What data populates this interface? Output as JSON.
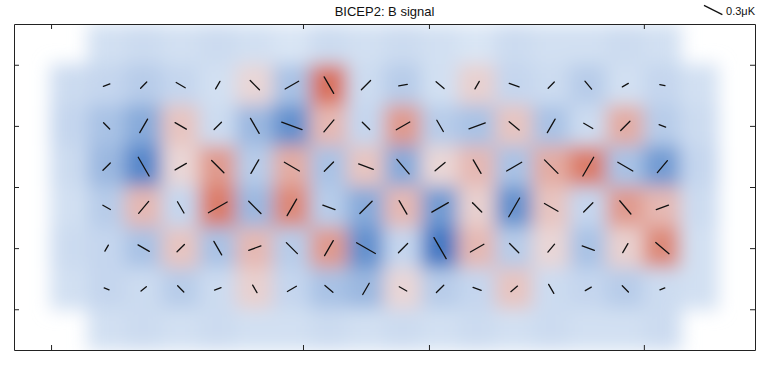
{
  "chart_data": {
    "type": "heatmap",
    "title": "BICEP2: B signal",
    "xlim": [
      0,
      20
    ],
    "ylim": [
      0,
      8
    ],
    "xticks": [
      1,
      7.8,
      11.2,
      17
    ],
    "yticks": [
      1,
      2.5,
      4,
      5.5,
      7
    ],
    "tick_labels": false,
    "zlim": [
      -0.3,
      0.3
    ],
    "scale_bar": {
      "value": 0.3,
      "label": "0.3μK"
    },
    "cells": [
      [
        null,
        null,
        -0.04,
        -0.05,
        -0.04,
        -0.05,
        -0.04,
        -0.03,
        -0.05,
        -0.04,
        -0.05,
        -0.04,
        -0.03,
        -0.05,
        -0.04,
        -0.04,
        -0.05,
        -0.04,
        null,
        null
      ],
      [
        null,
        -0.05,
        -0.06,
        -0.08,
        -0.06,
        -0.04,
        0.05,
        -0.1,
        0.22,
        -0.05,
        -0.08,
        -0.04,
        0.06,
        -0.06,
        -0.05,
        -0.08,
        -0.04,
        -0.06,
        -0.04,
        null
      ],
      [
        null,
        -0.06,
        -0.1,
        -0.15,
        0.08,
        -0.05,
        -0.12,
        -0.2,
        0.1,
        -0.06,
        0.15,
        -0.08,
        -0.1,
        0.08,
        -0.1,
        -0.05,
        0.12,
        -0.08,
        -0.05,
        null
      ],
      [
        null,
        -0.05,
        -0.12,
        -0.22,
        0.05,
        0.15,
        -0.08,
        0.12,
        -0.1,
        0.08,
        -0.15,
        0.05,
        0.1,
        -0.1,
        0.12,
        0.2,
        -0.1,
        -0.18,
        -0.06,
        null
      ],
      [
        null,
        -0.04,
        -0.08,
        0.1,
        -0.06,
        0.2,
        -0.12,
        0.18,
        -0.08,
        -0.15,
        0.1,
        -0.18,
        0.06,
        -0.2,
        0.08,
        -0.06,
        0.15,
        0.1,
        -0.05,
        null
      ],
      [
        null,
        -0.05,
        -0.06,
        -0.1,
        0.08,
        -0.1,
        0.1,
        -0.08,
        0.15,
        -0.2,
        -0.06,
        -0.25,
        0.1,
        -0.08,
        0.05,
        -0.1,
        0.06,
        0.18,
        -0.04,
        null
      ],
      [
        null,
        -0.04,
        -0.06,
        -0.05,
        -0.08,
        -0.05,
        0.06,
        -0.06,
        -0.1,
        -0.12,
        0.05,
        -0.08,
        -0.06,
        0.08,
        -0.05,
        -0.06,
        -0.08,
        -0.05,
        -0.04,
        null
      ],
      [
        null,
        null,
        -0.04,
        -0.05,
        -0.04,
        -0.05,
        -0.04,
        -0.04,
        -0.05,
        -0.04,
        -0.05,
        -0.04,
        -0.05,
        -0.04,
        -0.05,
        -0.04,
        -0.04,
        -0.05,
        null,
        null
      ]
    ],
    "vectors": {
      "angle": [
        [
          null,
          null,
          null,
          null,
          null,
          null,
          null,
          null,
          null,
          null,
          null,
          null,
          null,
          null,
          null,
          null,
          null,
          null,
          null,
          null
        ],
        [
          null,
          null,
          20,
          45,
          -30,
          60,
          -45,
          30,
          -60,
          45,
          10,
          -40,
          60,
          -20,
          45,
          -50,
          30,
          -10,
          null,
          null
        ],
        [
          null,
          null,
          -45,
          60,
          -30,
          45,
          -60,
          -20,
          50,
          -45,
          30,
          -60,
          20,
          -40,
          60,
          -30,
          45,
          -20,
          null,
          null
        ],
        [
          null,
          null,
          45,
          -60,
          30,
          -45,
          60,
          -30,
          45,
          -20,
          -50,
          40,
          -60,
          30,
          -45,
          60,
          -30,
          50,
          null,
          null
        ],
        [
          null,
          null,
          -30,
          50,
          -60,
          30,
          -45,
          60,
          -20,
          45,
          -60,
          30,
          -45,
          60,
          -30,
          45,
          -50,
          20,
          null,
          null
        ],
        [
          null,
          null,
          60,
          -30,
          45,
          -60,
          20,
          -45,
          60,
          -30,
          45,
          -60,
          30,
          -45,
          50,
          -20,
          60,
          -40,
          null,
          null
        ],
        [
          null,
          null,
          -20,
          40,
          -45,
          20,
          -60,
          30,
          -40,
          60,
          -30,
          45,
          -20,
          40,
          -60,
          30,
          -45,
          20,
          null,
          null
        ],
        [
          null,
          null,
          null,
          null,
          null,
          null,
          null,
          null,
          null,
          null,
          null,
          null,
          null,
          null,
          null,
          null,
          null,
          null,
          null,
          null
        ]
      ],
      "length": [
        [
          null,
          null,
          null,
          null,
          null,
          null,
          null,
          null,
          null,
          null,
          null,
          null,
          null,
          null,
          null,
          null,
          null,
          null,
          null,
          null
        ],
        [
          null,
          null,
          0.08,
          0.1,
          0.12,
          0.1,
          0.15,
          0.18,
          0.22,
          0.15,
          0.1,
          0.12,
          0.1,
          0.12,
          0.1,
          0.12,
          0.08,
          0.06,
          null,
          null
        ],
        [
          null,
          null,
          0.1,
          0.18,
          0.15,
          0.12,
          0.2,
          0.25,
          0.18,
          0.12,
          0.18,
          0.15,
          0.2,
          0.15,
          0.18,
          0.12,
          0.15,
          0.08,
          null,
          null
        ],
        [
          null,
          null,
          0.12,
          0.25,
          0.15,
          0.2,
          0.18,
          0.2,
          0.15,
          0.18,
          0.22,
          0.15,
          0.18,
          0.2,
          0.22,
          0.25,
          0.2,
          0.18,
          null,
          null
        ],
        [
          null,
          null,
          0.1,
          0.18,
          0.15,
          0.25,
          0.2,
          0.22,
          0.15,
          0.2,
          0.18,
          0.22,
          0.15,
          0.25,
          0.18,
          0.15,
          0.2,
          0.15,
          null,
          null
        ],
        [
          null,
          null,
          0.08,
          0.15,
          0.12,
          0.18,
          0.15,
          0.18,
          0.2,
          0.25,
          0.15,
          0.28,
          0.18,
          0.15,
          0.12,
          0.15,
          0.12,
          0.2,
          null,
          null
        ],
        [
          null,
          null,
          0.06,
          0.08,
          0.1,
          0.08,
          0.1,
          0.12,
          0.12,
          0.15,
          0.1,
          0.12,
          0.1,
          0.1,
          0.12,
          0.08,
          0.1,
          0.06,
          null,
          null
        ],
        [
          null,
          null,
          null,
          null,
          null,
          null,
          null,
          null,
          null,
          null,
          null,
          null,
          null,
          null,
          null,
          null,
          null,
          null,
          null,
          null
        ]
      ]
    }
  }
}
